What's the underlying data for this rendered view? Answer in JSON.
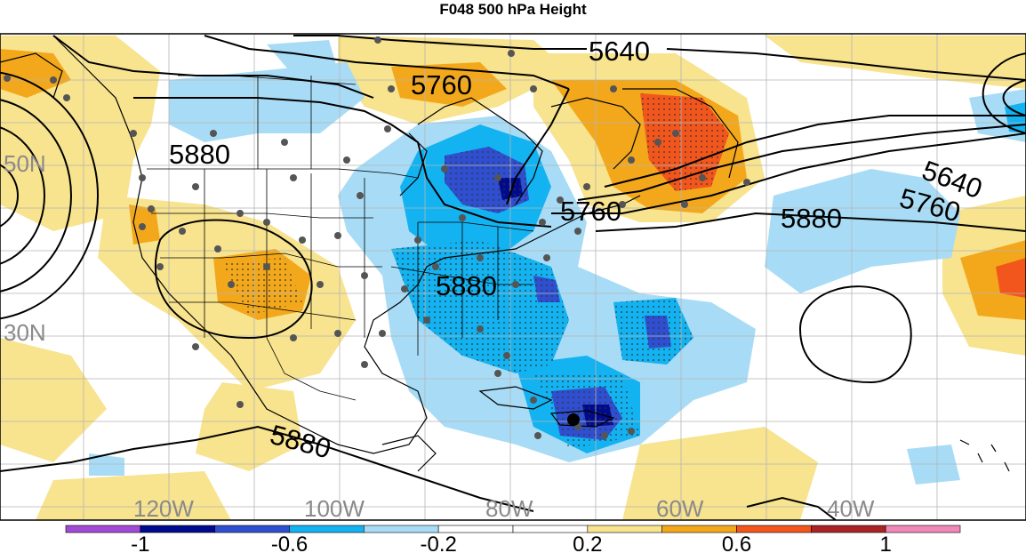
{
  "title": "F048 500 hPa Height",
  "latitude_labels": [
    "50N",
    "30N"
  ],
  "longitude_labels": [
    "120W",
    "100W",
    "80W",
    "60W",
    "40W"
  ],
  "contour_labels": [
    "5640",
    "5760",
    "5880",
    "5640",
    "5760",
    "5880",
    "5760",
    "5880",
    "5880"
  ],
  "colorbar": {
    "colors": [
      "#a24ad6",
      "#000a8c",
      "#2f4fd0",
      "#13b2f0",
      "#a8dcf6",
      "#ffffff",
      "#ffffff",
      "#f8e38e",
      "#f3a81c",
      "#f2561c",
      "#aa2424",
      "#f089b8"
    ],
    "labels": [
      "-1",
      "-0.6",
      "-0.2",
      "0.2",
      "0.6",
      "1"
    ]
  }
}
